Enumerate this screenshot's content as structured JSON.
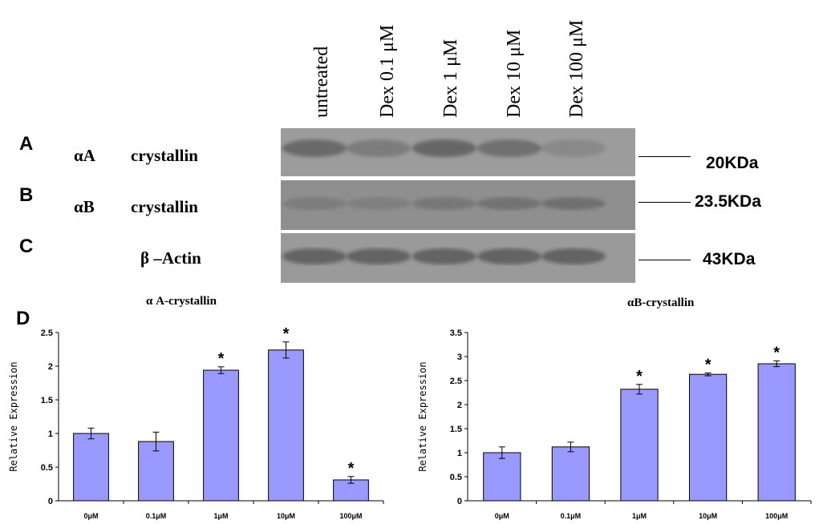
{
  "colors": {
    "bar_fill": "#9999ff",
    "blot_bg_A": "#9c9c9c",
    "blot_bg_B": "#8f8f8f",
    "blot_bg_C": "#9a9a9a",
    "band_dark": "#4a4a4a"
  },
  "western_blot": {
    "lanes": [
      "untreated",
      "Dex 0.1 μM",
      "Dex  1 μM",
      "Dex 10 μM",
      "Dex 100 μM"
    ],
    "panels": [
      {
        "letter": "A",
        "protein_prefix": "αA",
        "protein_name": "crystallin",
        "mw": "20KDa",
        "band_intensity": [
          0.8,
          0.5,
          0.85,
          0.7,
          0.3
        ]
      },
      {
        "letter": "B",
        "protein_prefix": "αB",
        "protein_name": "crystallin",
        "mw": "23.5KDa",
        "band_intensity": [
          0.35,
          0.3,
          0.45,
          0.55,
          0.6
        ]
      },
      {
        "letter": "C",
        "protein_prefix": "",
        "protein_name": "β –Actin",
        "mw": "43KDa",
        "band_intensity": [
          0.9,
          0.9,
          0.9,
          0.9,
          0.9
        ]
      }
    ]
  },
  "panel_d_letter": "D",
  "chart_data": [
    {
      "type": "bar",
      "title": "α A-crystallin",
      "ylabel": "Relative  Expression",
      "xlabel": "",
      "categories": [
        "0μM",
        "0.1μM",
        "1μM",
        "10μM",
        "100μM"
      ],
      "values": [
        1.0,
        0.88,
        1.94,
        2.24,
        0.31
      ],
      "errors": [
        0.08,
        0.14,
        0.05,
        0.12,
        0.05
      ],
      "significant": [
        false,
        false,
        true,
        true,
        true
      ],
      "sig_marker": "*",
      "ylim": [
        0,
        2.5
      ],
      "yticks": [
        "0",
        "0.5",
        "1",
        "1.5",
        "2",
        "2.5"
      ],
      "ytick_values": [
        0,
        0.5,
        1,
        1.5,
        2,
        2.5
      ],
      "grid": false
    },
    {
      "type": "bar",
      "title": "αB-crystallin",
      "ylabel": "Relative  Expression",
      "xlabel": "",
      "categories": [
        "0μM",
        "0.1μM",
        "1μM",
        "10μM",
        "100μM"
      ],
      "values": [
        1.0,
        1.12,
        2.32,
        2.63,
        2.85
      ],
      "errors": [
        0.12,
        0.1,
        0.1,
        0.03,
        0.06
      ],
      "significant": [
        false,
        false,
        true,
        true,
        true
      ],
      "sig_marker": "*",
      "ylim": [
        0,
        3.5
      ],
      "yticks": [
        "0",
        "0.5",
        "1",
        "1.5",
        "2",
        "2.5",
        "3",
        "3.5"
      ],
      "ytick_values": [
        0,
        0.5,
        1,
        1.5,
        2,
        2.5,
        3,
        3.5
      ],
      "grid": false
    }
  ]
}
